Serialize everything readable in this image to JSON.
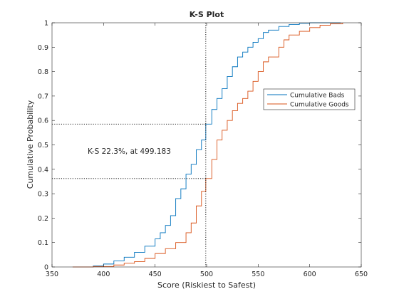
{
  "chart_data": {
    "type": "line",
    "title": "K-S Plot",
    "xlabel": "Score (Riskiest to Safest)",
    "ylabel": "Cumulative Probability",
    "xlim": [
      350,
      650
    ],
    "ylim": [
      0,
      1
    ],
    "xticks": [
      "350",
      "400",
      "450",
      "500",
      "550",
      "600",
      "650"
    ],
    "yticks": [
      "0",
      "0.1",
      "0.2",
      "0.3",
      "0.4",
      "0.5",
      "0.6",
      "0.7",
      "0.8",
      "0.9",
      "1"
    ],
    "grid": false,
    "legend_position": "right",
    "annotation": "K-S 22.3%, at 499.183",
    "ks_x": 499.183,
    "ks_y_high": 0.585,
    "ks_y_low": 0.362,
    "series": [
      {
        "name": "Cumulative Bads",
        "color": "#0072BD",
        "points": [
          [
            375,
            0
          ],
          [
            390,
            0.004
          ],
          [
            400,
            0.012
          ],
          [
            410,
            0.025
          ],
          [
            420,
            0.04
          ],
          [
            430,
            0.06
          ],
          [
            440,
            0.085
          ],
          [
            450,
            0.115
          ],
          [
            455,
            0.14
          ],
          [
            460,
            0.17
          ],
          [
            465,
            0.21
          ],
          [
            470,
            0.28
          ],
          [
            475,
            0.32
          ],
          [
            480,
            0.38
          ],
          [
            485,
            0.42
          ],
          [
            490,
            0.48
          ],
          [
            495,
            0.52
          ],
          [
            499.183,
            0.585
          ],
          [
            505,
            0.645
          ],
          [
            510,
            0.69
          ],
          [
            515,
            0.73
          ],
          [
            520,
            0.78
          ],
          [
            525,
            0.82
          ],
          [
            530,
            0.86
          ],
          [
            535,
            0.88
          ],
          [
            540,
            0.9
          ],
          [
            545,
            0.92
          ],
          [
            550,
            0.935
          ],
          [
            555,
            0.96
          ],
          [
            560,
            0.97
          ],
          [
            570,
            0.985
          ],
          [
            580,
            0.993
          ],
          [
            590,
            0.998
          ],
          [
            600,
            1
          ],
          [
            630,
            1
          ]
        ]
      },
      {
        "name": "Cumulative Goods",
        "color": "#D95319",
        "points": [
          [
            370,
            0
          ],
          [
            390,
            0.002
          ],
          [
            410,
            0.008
          ],
          [
            420,
            0.015
          ],
          [
            430,
            0.022
          ],
          [
            440,
            0.035
          ],
          [
            450,
            0.055
          ],
          [
            460,
            0.075
          ],
          [
            470,
            0.1
          ],
          [
            480,
            0.14
          ],
          [
            485,
            0.18
          ],
          [
            490,
            0.25
          ],
          [
            495,
            0.31
          ],
          [
            499.183,
            0.362
          ],
          [
            505,
            0.44
          ],
          [
            510,
            0.52
          ],
          [
            515,
            0.56
          ],
          [
            520,
            0.6
          ],
          [
            525,
            0.64
          ],
          [
            530,
            0.67
          ],
          [
            535,
            0.69
          ],
          [
            540,
            0.72
          ],
          [
            545,
            0.76
          ],
          [
            550,
            0.8
          ],
          [
            555,
            0.84
          ],
          [
            560,
            0.86
          ],
          [
            570,
            0.9
          ],
          [
            575,
            0.93
          ],
          [
            580,
            0.95
          ],
          [
            590,
            0.965
          ],
          [
            600,
            0.98
          ],
          [
            610,
            0.99
          ],
          [
            620,
            0.996
          ],
          [
            632,
            1
          ]
        ]
      }
    ]
  },
  "colors": {
    "axis": "#262626",
    "background": "#ffffff"
  }
}
